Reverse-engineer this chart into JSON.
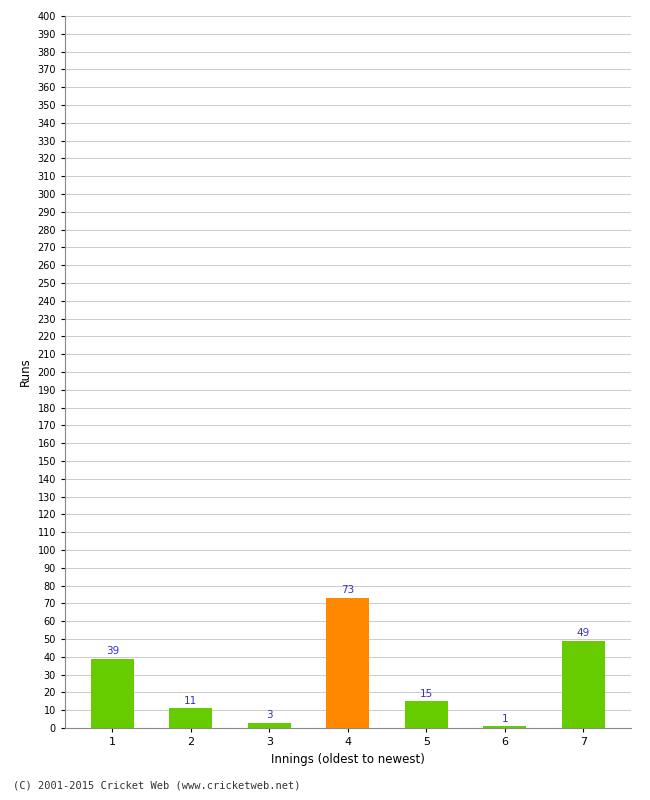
{
  "categories": [
    1,
    2,
    3,
    4,
    5,
    6,
    7
  ],
  "values": [
    39,
    11,
    3,
    73,
    15,
    1,
    49
  ],
  "bar_colors": [
    "#66cc00",
    "#66cc00",
    "#66cc00",
    "#ff8800",
    "#66cc00",
    "#66cc00",
    "#66cc00"
  ],
  "xlabel": "Innings (oldest to newest)",
  "ylabel": "Runs",
  "ylim": [
    0,
    400
  ],
  "yticks": [
    0,
    10,
    20,
    30,
    40,
    50,
    60,
    70,
    80,
    90,
    100,
    110,
    120,
    130,
    140,
    150,
    160,
    170,
    180,
    190,
    200,
    210,
    220,
    230,
    240,
    250,
    260,
    270,
    280,
    290,
    300,
    310,
    320,
    330,
    340,
    350,
    360,
    370,
    380,
    390,
    400
  ],
  "label_color": "#3333cc",
  "label_fontsize": 7.5,
  "background_color": "#ffffff",
  "grid_color": "#cccccc",
  "footer": "(C) 2001-2015 Cricket Web (www.cricketweb.net)",
  "bar_width": 0.55
}
